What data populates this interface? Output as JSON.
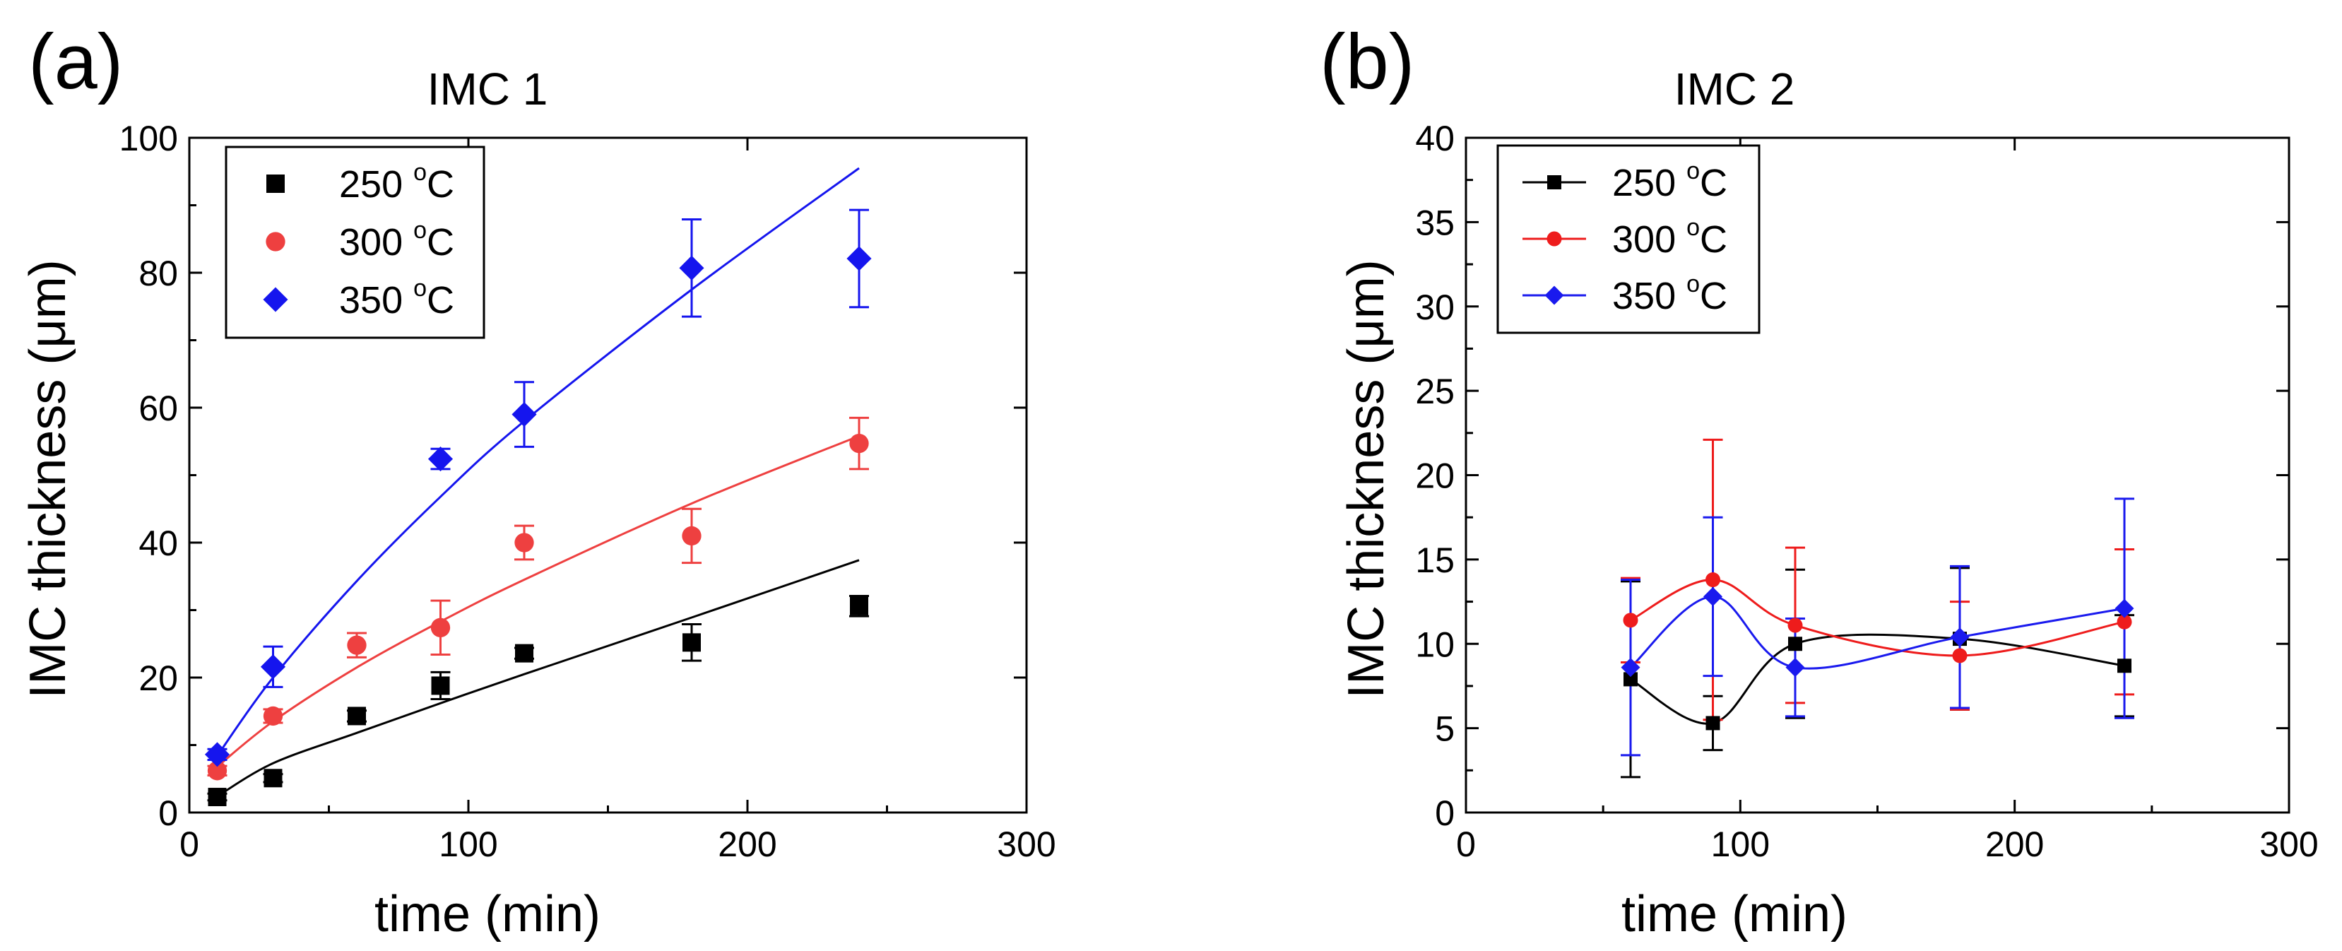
{
  "panels": [
    {
      "panel_label": "(a)",
      "title": "IMC 1",
      "xlabel": "time (min)",
      "ylabel": "IMC thickness (μm)"
    },
    {
      "panel_label": "(b)",
      "title": "IMC 2",
      "xlabel": "time (min)",
      "ylabel": "IMC thickness (μm)"
    }
  ],
  "chart_data": [
    {
      "type": "scatter",
      "title": "IMC 1",
      "panel_label": "(a)",
      "xlabel": "time (min)",
      "ylabel": "IMC thickness (μm)",
      "xlim": [
        0,
        300
      ],
      "ylim": [
        0,
        100
      ],
      "xticks": [
        0,
        100,
        200,
        300
      ],
      "yticks": [
        0,
        20,
        40,
        60,
        80,
        100
      ],
      "grid": false,
      "legend": "top-left",
      "series": [
        {
          "name": "250 °C",
          "name_base": "250 ",
          "name_sup": "o",
          "name_unit": "C",
          "color": "#000000",
          "marker": "square",
          "x": [
            10,
            30,
            60,
            90,
            120,
            180,
            240
          ],
          "y": [
            2.3,
            5.1,
            14.3,
            18.8,
            23.6,
            25.2,
            30.6
          ],
          "error": [
            0.5,
            0.6,
            0.8,
            2.0,
            0.8,
            2.7,
            1.5
          ],
          "fit": {
            "x": [
              10,
              30,
              60,
              90,
              120,
              180,
              240
            ],
            "y": [
              2.4,
              7.3,
              11.8,
              16.2,
              20.5,
              28.9,
              37.4
            ]
          }
        },
        {
          "name": "300 °C",
          "name_base": "300 ",
          "name_sup": "o",
          "name_unit": "C",
          "color": "#ee4040",
          "marker": "circle",
          "x": [
            10,
            30,
            60,
            90,
            120,
            180,
            240
          ],
          "y": [
            6.2,
            14.3,
            24.8,
            27.4,
            40.0,
            41.0,
            54.7
          ],
          "error": [
            0.7,
            1.0,
            1.8,
            4.0,
            2.5,
            4.0,
            3.8
          ],
          "fit": {
            "x": [
              10,
              30,
              60,
              90,
              120,
              180,
              240
            ],
            "y": [
              6.8,
              13.5,
              21.5,
              28.3,
              34.5,
              45.8,
              55.8
            ]
          }
        },
        {
          "name": "350 °C",
          "name_base": "350 ",
          "name_sup": "o",
          "name_unit": "C",
          "color": "#1515ee",
          "marker": "diamond",
          "x": [
            10,
            30,
            60,
            90,
            120,
            180,
            240
          ],
          "y": [
            8.6,
            21.6,
            null,
            52.4,
            59.0,
            80.7,
            82.1
          ],
          "error": [
            0.8,
            3.0,
            0,
            1.5,
            4.8,
            7.2,
            7.2
          ],
          "fit": {
            "x": [
              10,
              30,
              60,
              90,
              120,
              180,
              240
            ],
            "y": [
              8.4,
              20.0,
              34.3,
              46.8,
              58.0,
              77.5,
              95.5
            ]
          }
        }
      ]
    },
    {
      "type": "line",
      "title": "IMC 2",
      "panel_label": "(b)",
      "xlabel": "time (min)",
      "ylabel": "IMC thickness (μm)",
      "xlim": [
        0,
        300
      ],
      "ylim": [
        0,
        40
      ],
      "xticks": [
        0,
        100,
        200,
        300
      ],
      "yticks": [
        0,
        5,
        10,
        15,
        20,
        25,
        30,
        35,
        40
      ],
      "grid": false,
      "legend": "top-left",
      "series": [
        {
          "name": "250 °C",
          "name_base": "250 ",
          "name_sup": "o",
          "name_unit": "C",
          "color": "#000000",
          "marker": "square",
          "x": [
            60,
            90,
            120,
            180,
            240
          ],
          "y": [
            7.9,
            5.3,
            10.0,
            10.3,
            8.7
          ],
          "error": [
            5.8,
            1.6,
            4.4,
            4.2,
            3.0
          ]
        },
        {
          "name": "300 °C",
          "name_base": "300 ",
          "name_sup": "o",
          "name_unit": "C",
          "color": "#ee1c1c",
          "marker": "circle",
          "x": [
            60,
            90,
            120,
            180,
            240
          ],
          "y": [
            11.4,
            13.8,
            11.1,
            9.3,
            11.3
          ],
          "error": [
            2.5,
            8.3,
            4.6,
            3.2,
            4.3
          ]
        },
        {
          "name": "350 °C",
          "name_base": "350 ",
          "name_sup": "o",
          "name_unit": "C",
          "color": "#1a1aee",
          "marker": "diamond",
          "x": [
            60,
            90,
            120,
            180,
            240
          ],
          "y": [
            8.6,
            12.8,
            8.6,
            10.4,
            12.1
          ],
          "error": [
            5.2,
            4.7,
            2.9,
            4.2,
            6.5
          ]
        }
      ]
    }
  ]
}
